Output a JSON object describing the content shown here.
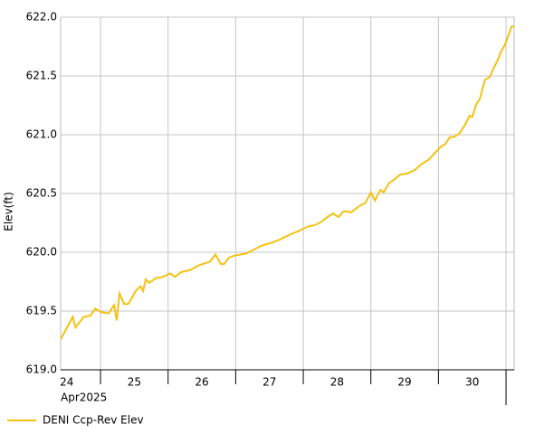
{
  "chart_data": {
    "type": "line",
    "y_label": "Elev(ft)",
    "x_sublabel": "Apr2025",
    "x": [
      24.41,
      24.59,
      24.63,
      24.75,
      24.85,
      24.92,
      25.01,
      25.12,
      25.2,
      25.24,
      25.28,
      25.35,
      25.41,
      25.52,
      25.59,
      25.63,
      25.67,
      25.72,
      25.82,
      25.92,
      26.03,
      26.1,
      26.19,
      26.33,
      26.46,
      26.62,
      26.7,
      26.78,
      26.83,
      26.89,
      26.97,
      27.06,
      27.16,
      27.26,
      27.4,
      27.53,
      27.66,
      27.8,
      27.93,
      28.07,
      28.17,
      28.27,
      28.36,
      28.44,
      28.52,
      28.6,
      28.71,
      28.82,
      28.92,
      29.0,
      29.06,
      29.14,
      29.19,
      29.27,
      29.35,
      29.43,
      29.54,
      29.65,
      29.75,
      29.86,
      29.94,
      30.02,
      30.1,
      30.17,
      30.23,
      30.31,
      30.39,
      30.46,
      30.5,
      30.56,
      30.61,
      30.69,
      30.76,
      30.82,
      30.88,
      30.93,
      30.98,
      31.04,
      31.08,
      31.12
    ],
    "series": [
      {
        "name": "DENI Ccp-Rev Elev",
        "color": "#f5c211",
        "values": [
          619.26,
          619.45,
          619.36,
          619.45,
          619.46,
          619.52,
          619.49,
          619.48,
          619.55,
          619.42,
          619.65,
          619.56,
          619.56,
          619.67,
          619.71,
          619.67,
          619.77,
          619.74,
          619.78,
          619.79,
          619.82,
          619.79,
          619.83,
          619.85,
          619.89,
          619.92,
          619.98,
          619.9,
          619.9,
          619.95,
          619.97,
          619.98,
          619.99,
          620.02,
          620.06,
          620.08,
          620.11,
          620.15,
          620.18,
          620.22,
          620.23,
          620.26,
          620.3,
          620.33,
          620.3,
          620.35,
          620.34,
          620.39,
          620.42,
          620.51,
          620.44,
          620.53,
          620.51,
          620.59,
          620.62,
          620.66,
          620.67,
          620.7,
          620.75,
          620.79,
          620.84,
          620.89,
          620.92,
          620.98,
          620.98,
          621.01,
          621.08,
          621.16,
          621.15,
          621.26,
          621.3,
          621.47,
          621.49,
          621.57,
          621.64,
          621.71,
          621.76,
          621.85,
          621.92,
          621.92
        ]
      }
    ],
    "xlim": [
      24.41,
      31.12
    ],
    "xticks": [
      {
        "value": 24.5,
        "label": "24"
      },
      {
        "value": 25.5,
        "label": "25"
      },
      {
        "value": 26.5,
        "label": "26"
      },
      {
        "value": 27.5,
        "label": "27"
      },
      {
        "value": 28.5,
        "label": "28"
      },
      {
        "value": 29.5,
        "label": "29"
      },
      {
        "value": 30.5,
        "label": "30"
      }
    ],
    "x_gridlines": [
      25,
      26,
      27,
      28,
      29,
      30,
      31
    ],
    "ylim": [
      619.0,
      622.0
    ],
    "yticks": [
      {
        "value": 619.0,
        "label": "619.0"
      },
      {
        "value": 619.5,
        "label": "619.5"
      },
      {
        "value": 620.0,
        "label": "620.0"
      },
      {
        "value": 620.5,
        "label": "620.5"
      },
      {
        "value": 621.0,
        "label": "621.0"
      },
      {
        "value": 621.5,
        "label": "621.5"
      },
      {
        "value": 622.0,
        "label": "622.0"
      }
    ],
    "grid": true,
    "legend": "bottom-left"
  }
}
